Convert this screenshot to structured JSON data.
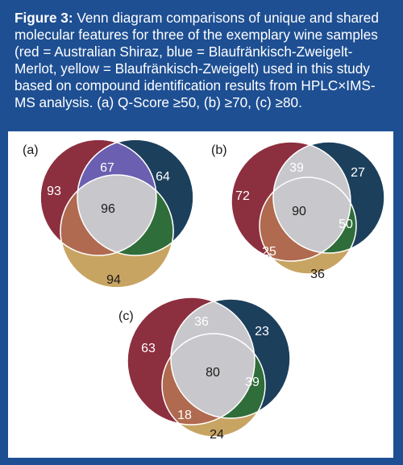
{
  "caption": {
    "label": "Figure 3:",
    "text": " Venn diagram comparisons of unique and shared molecular features for three of the exemplary wine samples (red = Australian Shiraz, blue = Blaufränkisch-Zweigelt-Merlot, yellow = Blaufränkisch-Zweigelt) used in this study based on compound identification results from HPLC×IMS-MS analysis. (a) Q-Score ≥50, (b) ≥70, (c) ≥80."
  },
  "colors": {
    "red": "#8c2f3f",
    "blue": "#1c3f5c",
    "yellow": "#c8a463",
    "red_blue": "#6a5fb0",
    "blue_yellow": "#2f6d3a",
    "red_yellow": "#b06a4f",
    "center": "#c8c8cc"
  },
  "panels": [
    {
      "label": "(a)",
      "red_only": "93",
      "red_blue": "67",
      "blue_only": "64",
      "center": "96",
      "yellow_only": "94"
    },
    {
      "label": "(b)",
      "red_only": "72",
      "red_blue": "39",
      "blue_only": "27",
      "center": "90",
      "blue_yellow": "50",
      "red_yellow": "25",
      "yellow_only": "36"
    },
    {
      "label": "(c)",
      "red_only": "63",
      "red_blue": "36",
      "blue_only": "23",
      "center": "80",
      "blue_yellow": "39",
      "red_yellow": "18",
      "yellow_only": "24"
    }
  ]
}
